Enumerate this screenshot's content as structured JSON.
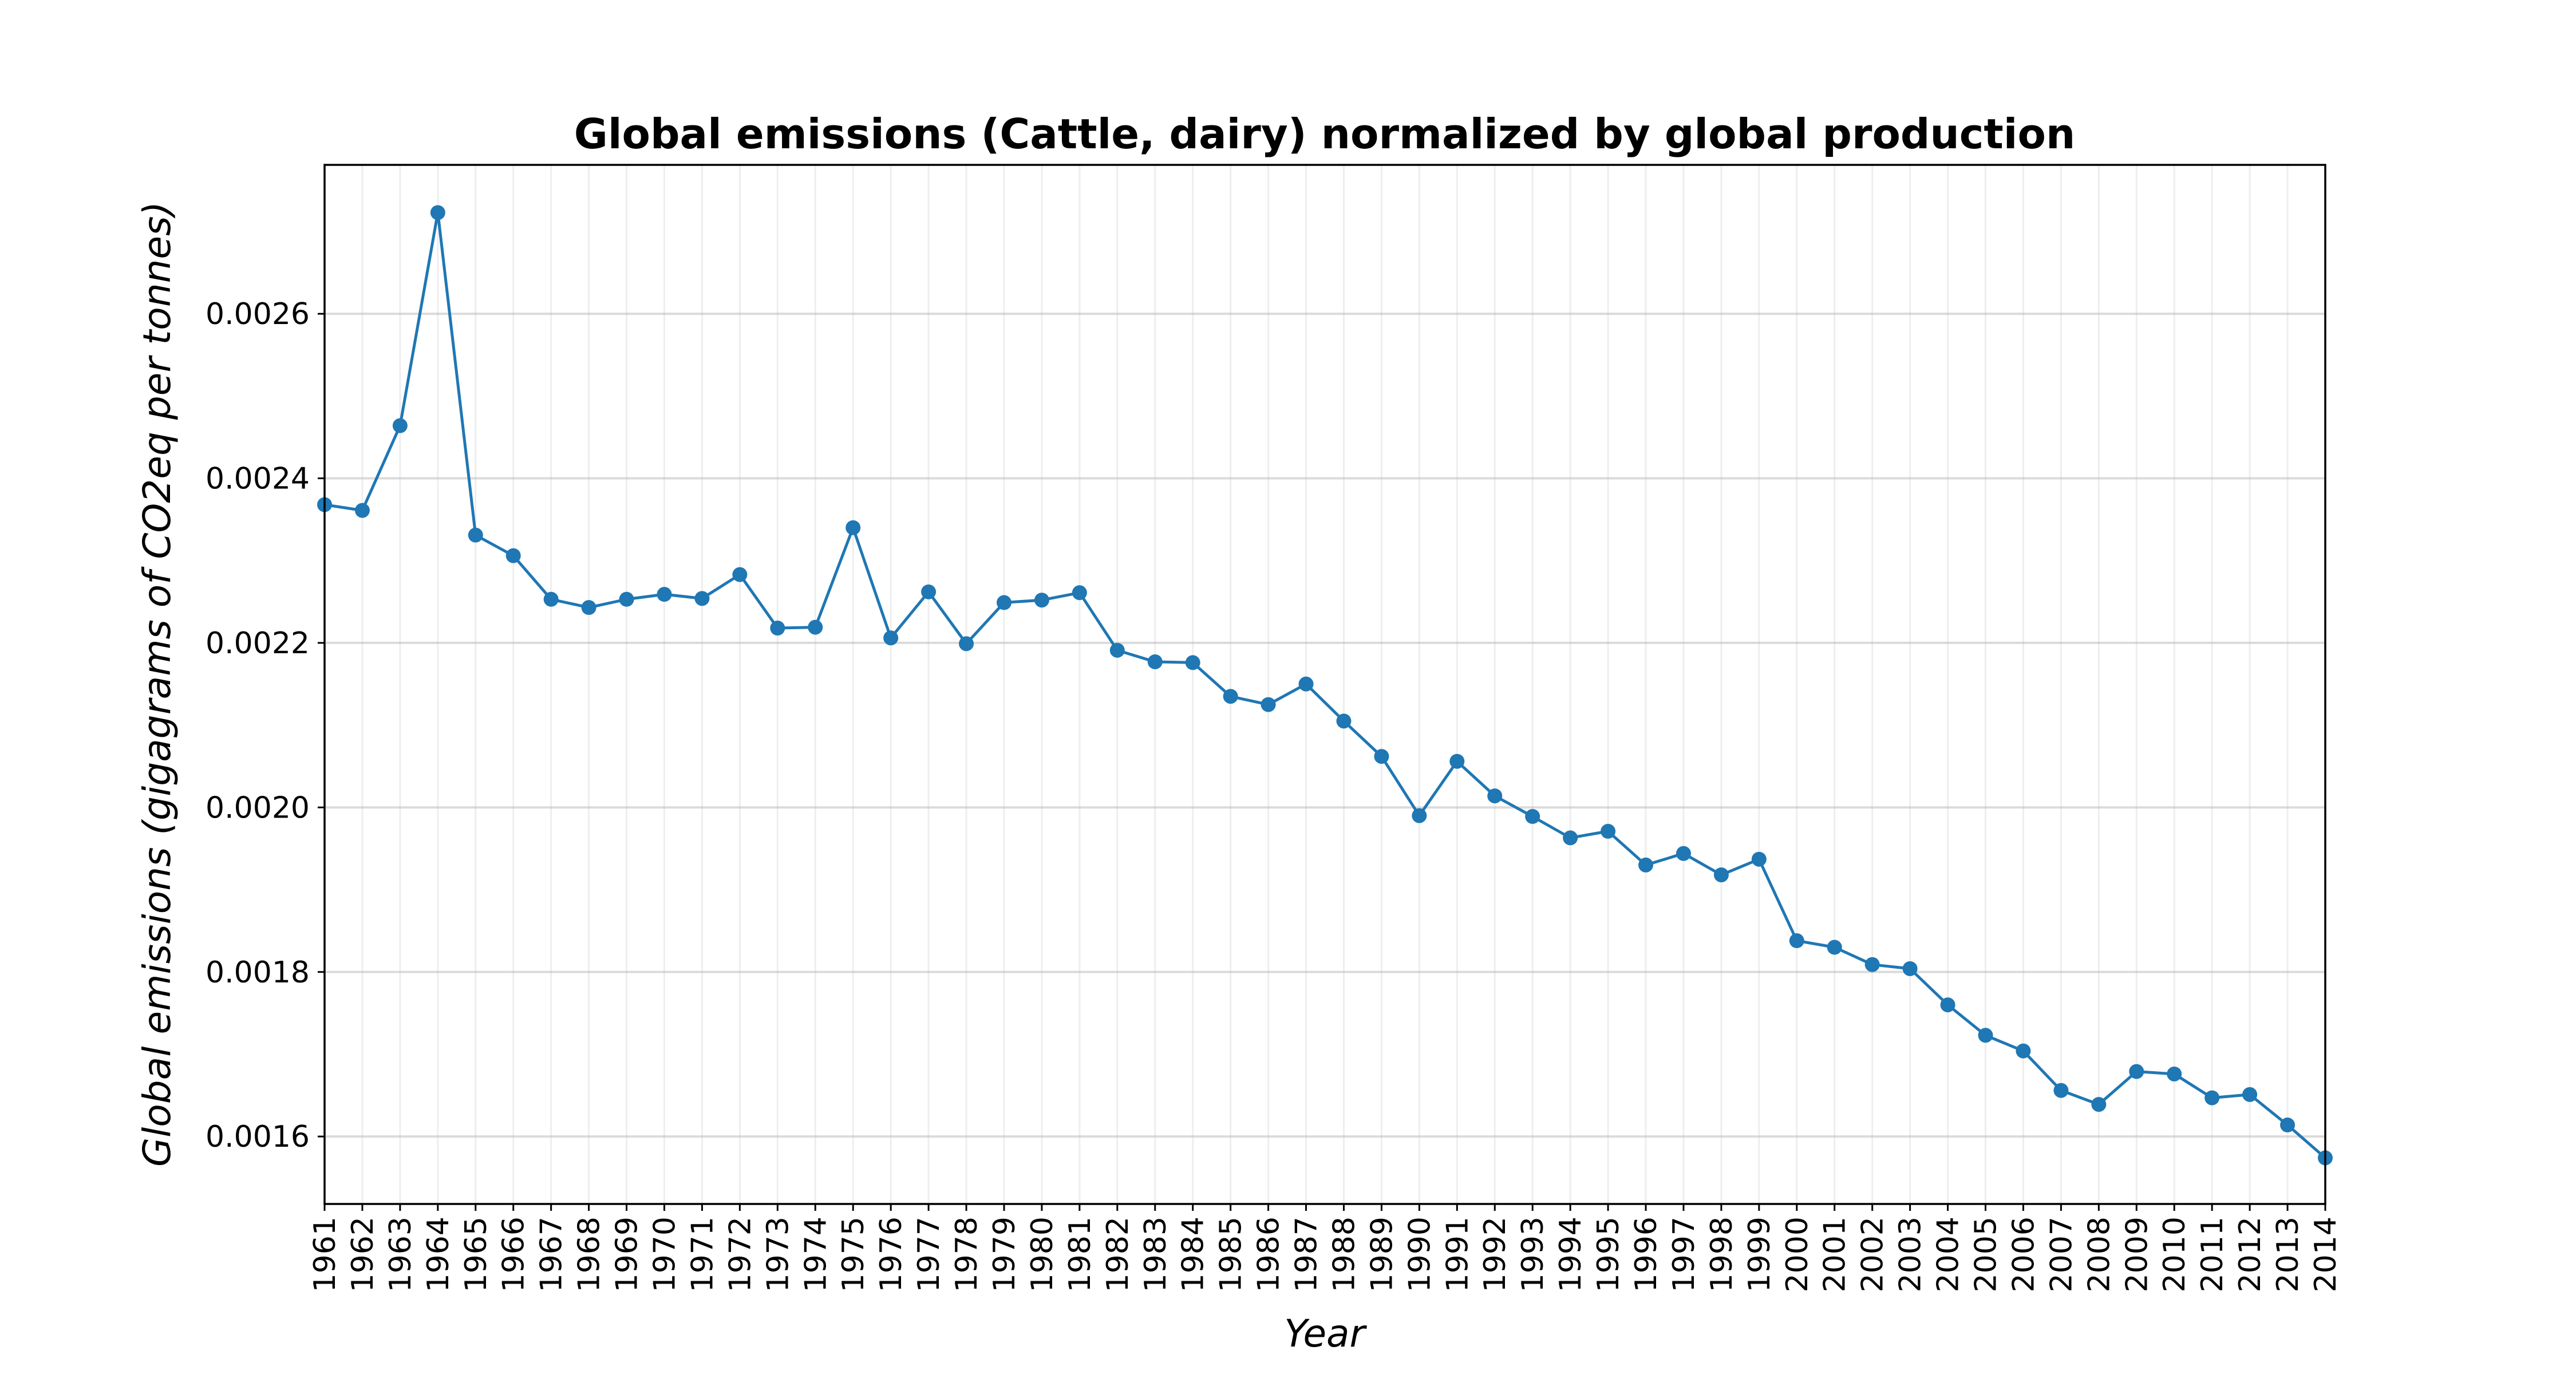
{
  "chart_data": {
    "type": "line",
    "title": "Global emissions (Cattle, dairy) normalized by global production",
    "xlabel": "Year",
    "ylabel": "Global emissions (gigagrams of CO2eq per tonnes)",
    "x": [
      "1961",
      "1962",
      "1963",
      "1964",
      "1965",
      "1966",
      "1967",
      "1968",
      "1969",
      "1970",
      "1971",
      "1972",
      "1973",
      "1974",
      "1975",
      "1976",
      "1977",
      "1978",
      "1979",
      "1980",
      "1981",
      "1982",
      "1983",
      "1984",
      "1985",
      "1986",
      "1987",
      "1988",
      "1989",
      "1990",
      "1991",
      "1992",
      "1993",
      "1994",
      "1995",
      "1996",
      "1997",
      "1998",
      "1999",
      "2000",
      "2001",
      "2002",
      "2003",
      "2004",
      "2005",
      "2006",
      "2007",
      "2008",
      "2009",
      "2010",
      "2011",
      "2012",
      "2013",
      "2014"
    ],
    "series": [
      {
        "values": [
          0.002368,
          0.002361,
          0.002464,
          0.002723,
          0.002331,
          0.002306,
          0.002253,
          0.002243,
          0.002253,
          0.002259,
          0.002254,
          0.002283,
          0.002218,
          0.002219,
          0.00234,
          0.002206,
          0.002262,
          0.002199,
          0.002249,
          0.002252,
          0.002261,
          0.002191,
          0.002177,
          0.002176,
          0.002135,
          0.002125,
          0.00215,
          0.002105,
          0.002062,
          0.00199,
          0.002056,
          0.002014,
          0.001989,
          0.001963,
          0.001971,
          0.00193,
          0.001944,
          0.001918,
          0.001937,
          0.001838,
          0.00183,
          0.001809,
          0.001804,
          0.00176,
          0.001723,
          0.001704,
          0.001656,
          0.001639,
          0.001679,
          0.001676,
          0.001647,
          0.001651,
          0.001614,
          0.001574
        ],
        "color": "#1f77b4",
        "marker": "circle"
      }
    ],
    "ylim": [
      0.001518,
      0.002781
    ],
    "yticks": [
      0.0016,
      0.0018,
      0.002,
      0.0022,
      0.0024,
      0.0026
    ],
    "ytick_labels": [
      "0.0016",
      "0.0018",
      "0.0020",
      "0.0022",
      "0.0024",
      "0.0026"
    ],
    "grid": true,
    "legend": "none"
  }
}
